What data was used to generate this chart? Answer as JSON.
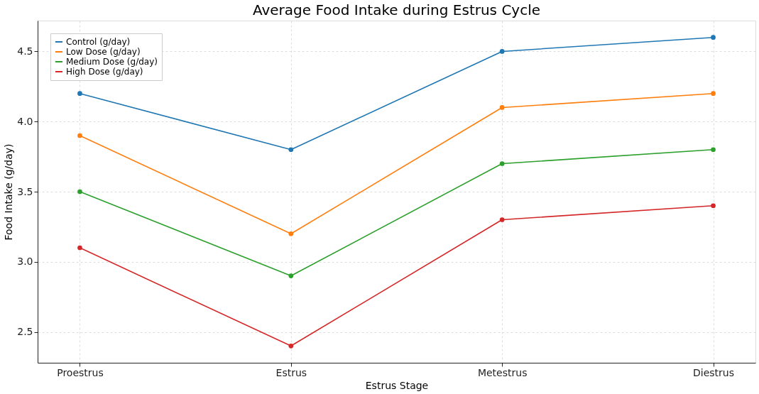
{
  "chart_data": {
    "type": "line",
    "title": "Average Food Intake during Estrus Cycle",
    "xlabel": "Estrus Stage",
    "ylabel": "Food Intake (g/day)",
    "categories": [
      "Proestrus",
      "Estrus",
      "Metestrus",
      "Diestrus"
    ],
    "series": [
      {
        "name": "Control (g/day)",
        "color": "#1f77b4",
        "values": [
          4.2,
          3.8,
          4.5,
          4.6
        ]
      },
      {
        "name": "Low Dose (g/day)",
        "color": "#ff7f0e",
        "values": [
          3.9,
          3.2,
          4.1,
          4.2
        ]
      },
      {
        "name": "Medium Dose (g/day)",
        "color": "#2ca02c",
        "values": [
          3.5,
          2.9,
          3.7,
          3.8
        ]
      },
      {
        "name": "High Dose (g/day)",
        "color": "#d62728",
        "values": [
          3.1,
          2.4,
          3.3,
          3.4
        ]
      }
    ],
    "ylim": [
      2.28,
      4.72
    ],
    "yticks": [
      {
        "value": 2.5,
        "label": "2.5"
      },
      {
        "value": 3,
        "label": "3.0"
      },
      {
        "value": 3.5,
        "label": "3.5"
      },
      {
        "value": 4,
        "label": "4.0"
      },
      {
        "value": 4.5,
        "label": "4.5"
      }
    ],
    "grid": true,
    "legend": "top left",
    "marker": "circle",
    "line_style": "solid"
  }
}
